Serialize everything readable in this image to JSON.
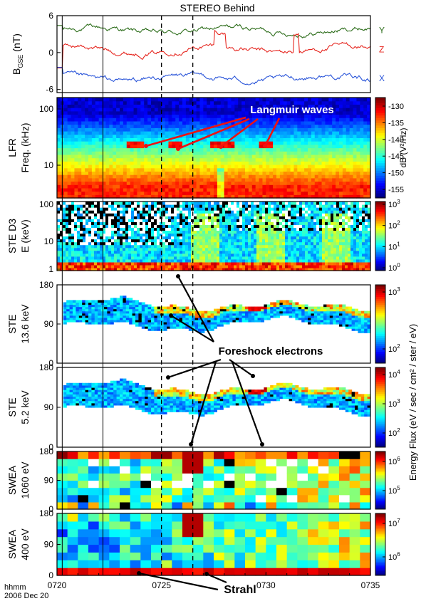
{
  "chart_data": {
    "type": "heatmap",
    "title": "STEREO Behind",
    "time_axis": {
      "tick_labels": [
        "0720",
        "0725",
        "0730",
        "0735"
      ],
      "unit_label": "hhmm",
      "date_label": "2006 Dec 20",
      "range_minutes": [
        0,
        15
      ]
    },
    "vertical_lines": {
      "solid_minutes": [
        0.25,
        2.2
      ],
      "dashed_minutes": [
        5.0,
        6.5
      ]
    },
    "panels": [
      {
        "id": "bfield",
        "type": "line",
        "ylabel": "B",
        "ylabel_sub": "GSE",
        "ylabel_unit": " (nT)",
        "ylim": [
          -6.5,
          6
        ],
        "yticks": [
          "6",
          "0",
          "-6"
        ],
        "series": [
          {
            "name": "Y",
            "color": "#2e6e1c",
            "base": 3.6,
            "amp": 0.7
          },
          {
            "name": "Z",
            "color": "#e6261f",
            "base": 0.5,
            "amp": 0.9
          },
          {
            "name": "X",
            "color": "#2a55d9",
            "base": -4.2,
            "amp": 0.7
          }
        ]
      },
      {
        "id": "lfr",
        "type": "heatmap",
        "ylabel": [
          "LFR",
          "Freq. (kHz)"
        ],
        "yticks": [
          "100",
          "10"
        ],
        "colorbar_label": "dB (V²/Hz)",
        "colorbar_ticks": [
          "-130",
          "-135",
          "-140",
          "-145",
          "-150",
          "-155"
        ],
        "crange": [
          -157,
          -128
        ]
      },
      {
        "id": "ste_d3",
        "type": "heatmap",
        "ylabel": [
          "STE D3",
          "E (keV)"
        ],
        "yticks": [
          "100",
          "10",
          "1"
        ],
        "colorbar_ticks": [
          {
            "base": "10",
            "exp": "3"
          },
          {
            "base": "10",
            "exp": "2"
          },
          {
            "base": "10",
            "exp": "1"
          },
          {
            "base": "10",
            "exp": "0"
          }
        ]
      },
      {
        "id": "ste_136",
        "type": "heatmap",
        "ylabel": [
          "STE",
          "13.6 keV"
        ],
        "yticks": [
          "180",
          "90",
          "0"
        ],
        "colorbar_ticks": [
          {
            "base": "10",
            "exp": "3"
          },
          {
            "base": "10",
            "exp": "2"
          }
        ]
      },
      {
        "id": "ste_52",
        "type": "heatmap",
        "ylabel": [
          "STE",
          "5.2 keV"
        ],
        "yticks": [
          "180",
          "90",
          "0"
        ],
        "colorbar_ticks": [
          {
            "base": "10",
            "exp": "4"
          },
          {
            "base": "10",
            "exp": "3"
          },
          {
            "base": "10",
            "exp": "2"
          }
        ]
      },
      {
        "id": "swea_1060",
        "type": "heatmap",
        "ylabel": [
          "SWEA",
          "1060 eV"
        ],
        "yticks": [
          "180",
          "90",
          "0"
        ],
        "colorbar_ticks": [
          {
            "base": "10",
            "exp": "6"
          },
          {
            "base": "10",
            "exp": "5"
          }
        ]
      },
      {
        "id": "swea_400",
        "type": "heatmap",
        "ylabel": [
          "SWEA",
          "400 eV"
        ],
        "yticks": [
          "180",
          "90",
          "0"
        ],
        "colorbar_ticks": [
          {
            "base": "10",
            "exp": "7"
          },
          {
            "base": "10",
            "exp": "6"
          }
        ]
      }
    ],
    "shared_colorbar_label": "Energy Flux (eV / sec / cm² / ster / eV)",
    "annotations": [
      {
        "text": "Langmuir waves",
        "panel": "lfr"
      },
      {
        "text": "Foreshock electrons",
        "panel": "ste_136"
      },
      {
        "text": "Strahl",
        "panel": "swea_400"
      }
    ]
  }
}
